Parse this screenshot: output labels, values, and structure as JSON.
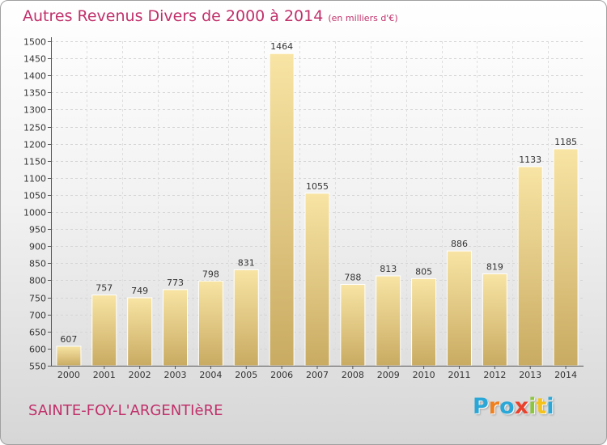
{
  "title": "Autres Revenus Divers de 2000 à 2014",
  "unit_note": "(en milliers d'€)",
  "location": "SAINTE-FOY-L'ARGENTIèRE",
  "brand": {
    "letters": [
      "P",
      "r",
      "o",
      "x",
      "i",
      "t",
      "i"
    ],
    "colors": [
      "#2aa7d6",
      "#f07f1e",
      "#2aa7d6",
      "#e8412c",
      "#8cc63f",
      "#f4c21b",
      "#2aa7d6"
    ]
  },
  "chart_data": {
    "type": "bar",
    "categories": [
      "2000",
      "2001",
      "2002",
      "2003",
      "2004",
      "2005",
      "2006",
      "2007",
      "2008",
      "2009",
      "2010",
      "2011",
      "2012",
      "2013",
      "2014"
    ],
    "values": [
      607,
      757,
      749,
      773,
      798,
      831,
      1464,
      1055,
      788,
      813,
      805,
      886,
      819,
      1133,
      1185
    ],
    "ylim": [
      550,
      1500
    ],
    "yticks": [
      550,
      600,
      650,
      700,
      750,
      800,
      850,
      900,
      950,
      1000,
      1050,
      1100,
      1150,
      1200,
      1250,
      1300,
      1350,
      1400,
      1450,
      1500
    ],
    "grid": true,
    "bar_color": "#e6c77c"
  }
}
